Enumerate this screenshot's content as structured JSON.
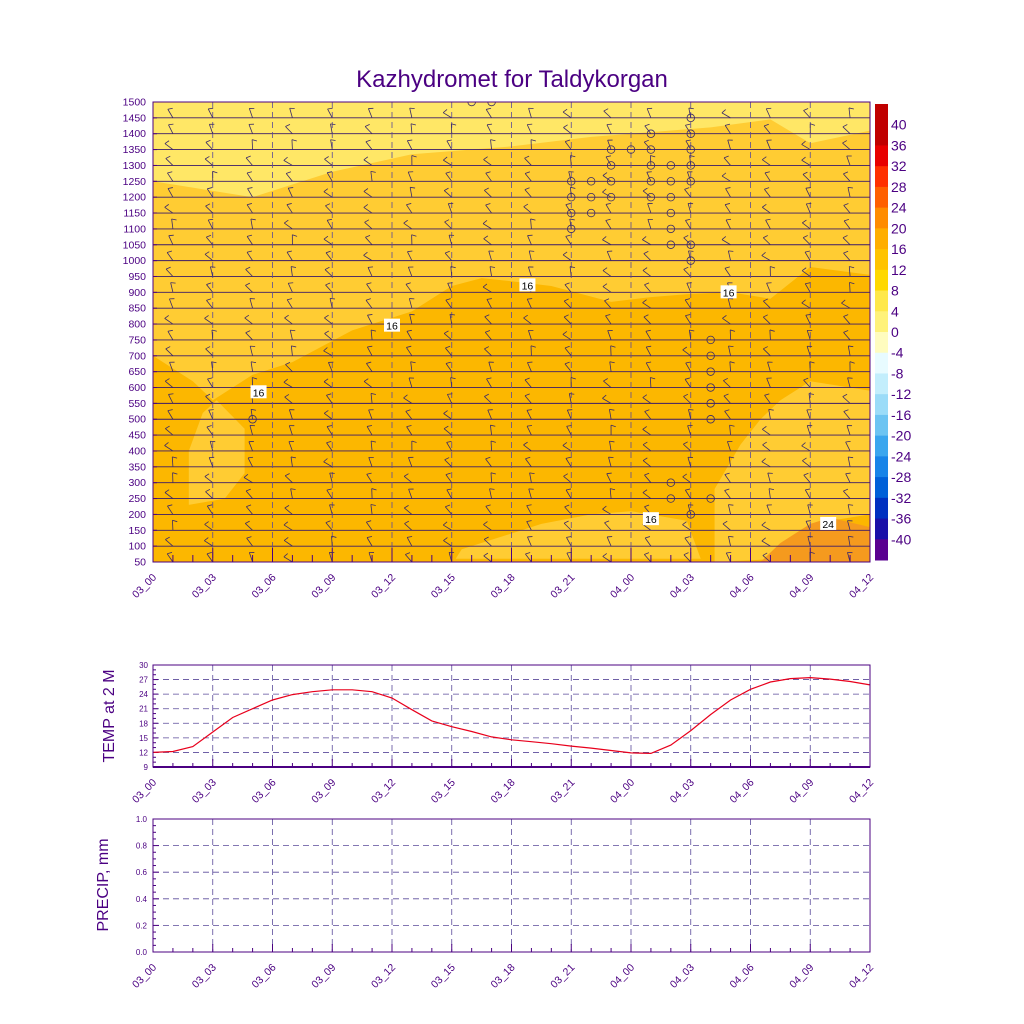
{
  "title": "Kazhydromet for Taldykorgan",
  "colors": {
    "text": "#4b0082",
    "frame": "#4b0082",
    "temp_line": "#e8001c",
    "fill_low": "#ffe766",
    "fill_mid": "#ffcc33",
    "fill_main": "#fcb700",
    "fill_high": "#f59a1e"
  },
  "time_labels": [
    "03_00",
    "03_03",
    "03_06",
    "03_09",
    "03_12",
    "03_15",
    "03_18",
    "03_21",
    "04_00",
    "04_03",
    "04_06",
    "04_09",
    "04_12"
  ],
  "chart_data": [
    {
      "type": "heatmap",
      "name": "vertical-profile",
      "title": "Kazhydromet for Taldykorgan",
      "x_ticks": [
        "03_00",
        "03_03",
        "03_06",
        "03_09",
        "03_12",
        "03_15",
        "03_18",
        "03_21",
        "04_00",
        "04_03",
        "04_06",
        "04_09",
        "04_12"
      ],
      "y_ticks": [
        1500,
        1450,
        1400,
        1350,
        1300,
        1250,
        1200,
        1150,
        1100,
        1050,
        1000,
        950,
        900,
        850,
        800,
        750,
        700,
        650,
        600,
        550,
        500,
        450,
        400,
        350,
        300,
        250,
        200,
        150,
        100,
        50
      ],
      "ylim": [
        50,
        1500
      ],
      "contour_labels": [
        {
          "text": "16",
          "t": 18.8,
          "p": 922
        },
        {
          "text": "16",
          "t": 28.9,
          "p": 900
        },
        {
          "text": "16",
          "t": 12,
          "p": 795
        },
        {
          "text": "16",
          "t": 5.3,
          "p": 585
        },
        {
          "text": "16",
          "t": 25,
          "p": 185
        },
        {
          "text": "24",
          "t": 33.9,
          "p": 170
        }
      ],
      "colorbar": {
        "labels": [
          "40",
          "36",
          "32",
          "28",
          "24",
          "20",
          "16",
          "12",
          "8",
          "4",
          "0",
          "-4",
          "-8",
          "-12",
          "-16",
          "-20",
          "-24",
          "-28",
          "-32",
          "-36",
          "-40"
        ],
        "colors": [
          "#c00000",
          "#e80000",
          "#ff3000",
          "#ff6000",
          "#ff8c00",
          "#ffae00",
          "#ffc300",
          "#ffd800",
          "#ffe84a",
          "#fff27a",
          "#fffcbf",
          "#e8fbff",
          "#c3eefc",
          "#9bdcf8",
          "#6cc4f2",
          "#3aa6ee",
          "#1784e8",
          "#0060d8",
          "#0030c0",
          "#1a10a8",
          "#5a0090"
        ]
      }
    },
    {
      "type": "line",
      "name": "temp-2m",
      "ylabel": "TEMP at 2 M",
      "ylim": [
        9,
        30
      ],
      "y_ticks": [
        30,
        27,
        24,
        21,
        18,
        15,
        12,
        9
      ],
      "x_ticks": [
        "03_00",
        "03_03",
        "03_06",
        "03_09",
        "03_12",
        "03_15",
        "03_18",
        "03_21",
        "04_00",
        "04_03",
        "04_06",
        "04_09",
        "04_12"
      ],
      "x_hours": [
        0,
        1,
        2,
        3,
        4,
        5,
        6,
        7,
        8,
        9,
        10,
        11,
        12,
        13,
        14,
        15,
        16,
        17,
        18,
        19,
        20,
        21,
        22,
        23,
        24,
        25,
        26,
        27,
        28,
        29,
        30,
        31,
        32,
        33,
        34,
        35,
        36
      ],
      "values": [
        12,
        12.2,
        13.2,
        16.2,
        19.2,
        21,
        22.8,
        23.9,
        24.5,
        24.9,
        24.9,
        24.5,
        23.2,
        20.8,
        18.5,
        17.3,
        16.3,
        15.2,
        14.6,
        14.2,
        13.8,
        13.3,
        12.9,
        12.4,
        11.9,
        11.8,
        13.5,
        16.5,
        19.8,
        22.8,
        25,
        26.5,
        27.2,
        27.4,
        27.1,
        26.6,
        25.9
      ]
    },
    {
      "type": "line",
      "name": "precip",
      "ylabel": "PRECIP, mm",
      "ylim": [
        0,
        1
      ],
      "y_ticks": [
        "1.0",
        "0.8",
        "0.6",
        "0.4",
        "0.2",
        "0.0"
      ],
      "x_ticks": [
        "03_00",
        "03_03",
        "03_06",
        "03_09",
        "03_12",
        "03_15",
        "03_18",
        "03_21",
        "04_00",
        "04_03",
        "04_06",
        "04_09",
        "04_12"
      ],
      "values": []
    }
  ]
}
